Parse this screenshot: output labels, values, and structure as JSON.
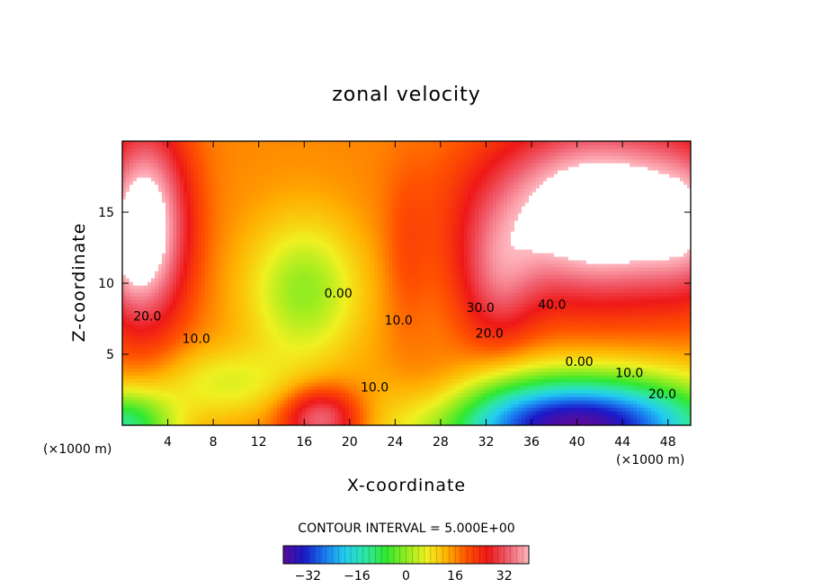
{
  "chart_data": {
    "type": "heatmap",
    "title": "zonal velocity",
    "xlabel": "X-coordinate",
    "ylabel": "Z-coordinate",
    "x_unit": "(×1000 m)",
    "xlim": [
      0,
      50
    ],
    "ylim": [
      0,
      20
    ],
    "x_ticks": [
      4,
      8,
      12,
      16,
      20,
      24,
      28,
      32,
      36,
      40,
      44,
      48
    ],
    "y_ticks": [
      5,
      10,
      15
    ],
    "contour_interval_text": "CONTOUR INTERVAL = 5.000E+00",
    "contour_labels": [
      {
        "text": "20.0",
        "x": 2.2,
        "z": 7.7
      },
      {
        "text": "10.0",
        "x": 6.5,
        "z": 6.1
      },
      {
        "text": "0.00",
        "x": 19.0,
        "z": 9.3
      },
      {
        "text": "10.0",
        "x": 24.3,
        "z": 7.4
      },
      {
        "text": "10.0",
        "x": 22.2,
        "z": 2.7
      },
      {
        "text": "30.0",
        "x": 31.5,
        "z": 8.3
      },
      {
        "text": "40.0",
        "x": 37.8,
        "z": 8.5
      },
      {
        "text": "20.0",
        "x": 32.3,
        "z": 6.5
      },
      {
        "text": "0.00",
        "x": 40.2,
        "z": 4.5
      },
      {
        "text": "10.0",
        "x": 44.6,
        "z": 3.7
      },
      {
        "text": "20.0",
        "x": 47.5,
        "z": 2.2
      }
    ],
    "colorbar": {
      "min": -40,
      "max": 40,
      "ticks": [
        -32,
        -16,
        0,
        16,
        32
      ],
      "colors": [
        "#5a0a9a",
        "#1a1ac8",
        "#1a78f0",
        "#22cdf0",
        "#2ee6a6",
        "#30e830",
        "#90ec20",
        "#f0f020",
        "#ffb000",
        "#ff5000",
        "#ee1818",
        "#f06070",
        "#ffb8c0"
      ]
    },
    "field_features": [
      {
        "feature": "jet core above 40",
        "x_range": [
          32,
          50
        ],
        "z_range": [
          8.5,
          20
        ]
      },
      {
        "feature": "jet core above 40",
        "x_range": [
          0,
          1.5
        ],
        "z_range": [
          13,
          17
        ]
      },
      {
        "feature": "minimum near -40",
        "x_range": [
          34,
          46
        ],
        "z_range": [
          0,
          1.5
        ]
      },
      {
        "feature": "local maximum near 35",
        "x_range": [
          14,
          21
        ],
        "z_range": [
          0,
          2.5
        ]
      },
      {
        "feature": "minimum near 0",
        "x_range": [
          13,
          21
        ],
        "z_range": [
          7,
          12
        ]
      }
    ]
  }
}
